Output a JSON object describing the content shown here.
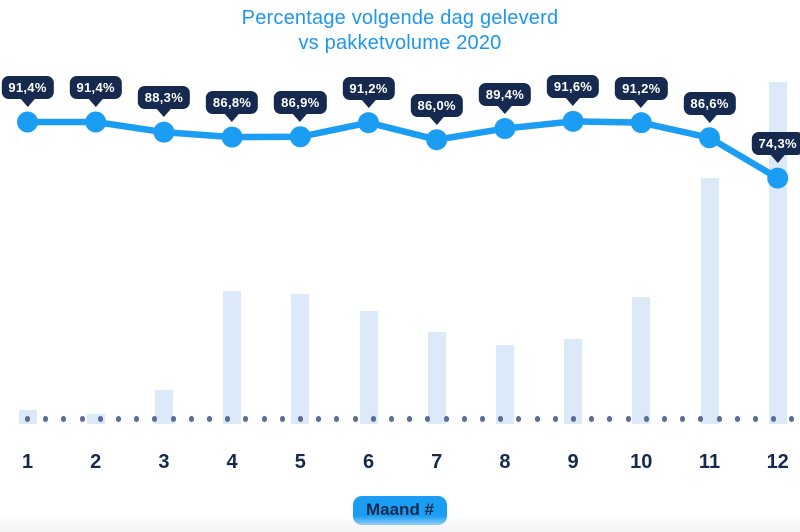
{
  "title": {
    "line1": "Percentage volgende dag geleverd",
    "line2": "vs pakketvolume 2020"
  },
  "x_axis_badge": "Maand #",
  "chart_data": {
    "type": "combo",
    "title": "Percentage volgende dag geleverd vs pakketvolume 2020",
    "xlabel": "Maand #",
    "categories": [
      "1",
      "2",
      "3",
      "4",
      "5",
      "6",
      "7",
      "8",
      "9",
      "10",
      "11",
      "12"
    ],
    "series": [
      {
        "name": "Percentage volgende dag geleverd",
        "type": "line",
        "unit": "%",
        "values": [
          91.4,
          91.4,
          88.3,
          86.8,
          86.9,
          91.2,
          86.0,
          89.4,
          91.6,
          91.2,
          86.6,
          74.3
        ],
        "point_labels": [
          "91,4%",
          "91,4%",
          "88,3%",
          "86,8%",
          "86,9%",
          "91,2%",
          "86,0%",
          "89,4%",
          "91,6%",
          "91,2%",
          "86,6%",
          "74,3%"
        ]
      },
      {
        "name": "Pakketvolume 2020",
        "type": "bar",
        "unit": "relative index (month 12 = 100; estimated from bar heights, no value axis shown)",
        "values": [
          4,
          3,
          10,
          39,
          38,
          33,
          27,
          23,
          25,
          37,
          72,
          100
        ]
      }
    ],
    "legend_position": "none",
    "grid": false,
    "baseline_style": "dotted"
  },
  "colors": {
    "title_blue": "#1e96f0",
    "accent_blue": "#1b9df4",
    "navy": "#16294f",
    "bar_fill": "#dbe9f8",
    "baseline_dot": "#5d6e96",
    "tooltip_text": "#ffffff",
    "background": "#ffffff",
    "footer_fade": "#f2f3f5"
  }
}
